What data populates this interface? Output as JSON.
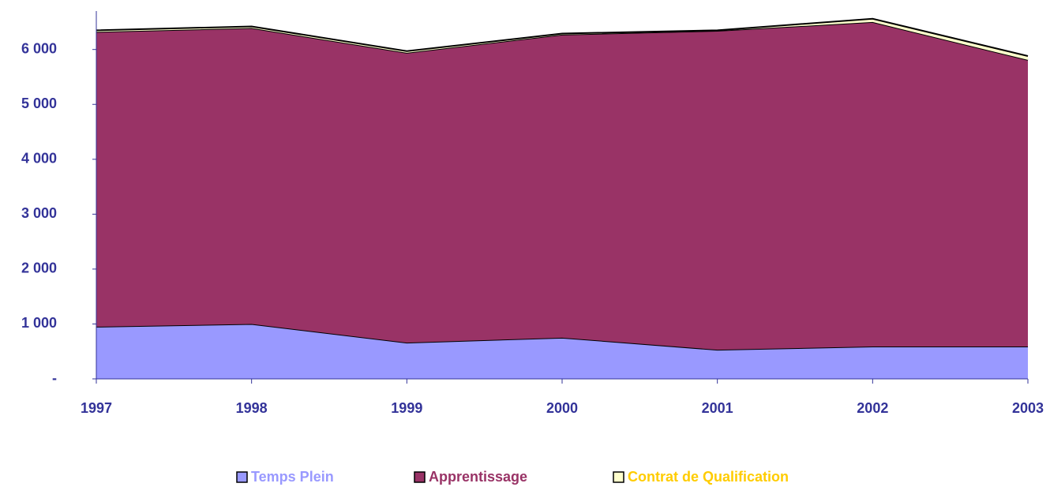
{
  "chart_data": {
    "type": "stacked_area",
    "categories": [
      "1997",
      "1998",
      "1999",
      "2000",
      "2001",
      "2002",
      "2003"
    ],
    "series": [
      {
        "name": "Temps Plein",
        "color": "#9999ff",
        "label_color": "#9999ff",
        "values": [
          950,
          1000,
          660,
          750,
          530,
          590,
          590
        ]
      },
      {
        "name": "Apprentissage",
        "color": "#993366",
        "label_color": "#993366",
        "values": [
          5370,
          5390,
          5280,
          5520,
          5810,
          5910,
          5220
        ]
      },
      {
        "name": "Contrat de Qualification",
        "color": "#ffffcc",
        "label_color": "#ffcc00",
        "values": [
          30,
          30,
          30,
          20,
          10,
          60,
          70
        ]
      }
    ],
    "ylim": [
      0,
      6700
    ],
    "yticks": [
      {
        "value": 0,
        "label": "-"
      },
      {
        "value": 1000,
        "label": "1 000"
      },
      {
        "value": 2000,
        "label": "2 000"
      },
      {
        "value": 3000,
        "label": "3 000"
      },
      {
        "value": 4000,
        "label": "4 000"
      },
      {
        "value": 5000,
        "label": "5 000"
      },
      {
        "value": 6000,
        "label": "6 000"
      }
    ],
    "axis_color": "#333399",
    "legend": "bottom"
  }
}
